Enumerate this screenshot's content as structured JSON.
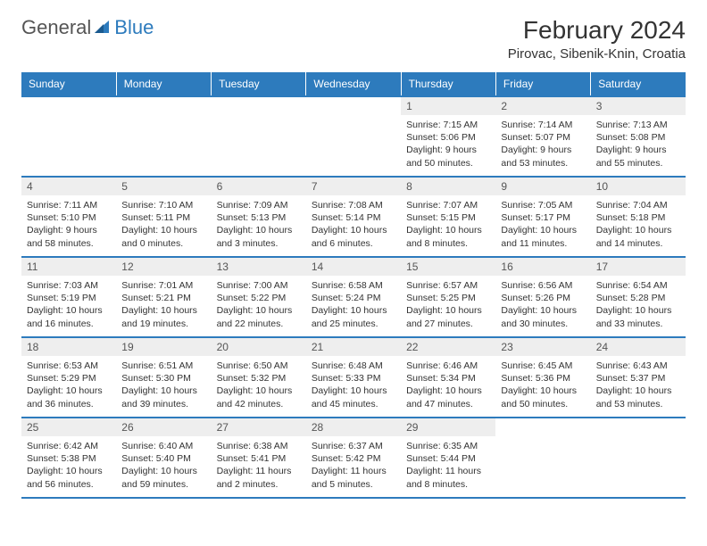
{
  "logo": {
    "general": "General",
    "blue": "Blue"
  },
  "title": "February 2024",
  "location": "Pirovac, Sibenik-Knin, Croatia",
  "colors": {
    "header_bg": "#2d7bbd",
    "header_text": "#ffffff",
    "daynum_bg": "#eeeeee",
    "border": "#2d7bbd",
    "text": "#333333"
  },
  "weekdays": [
    "Sunday",
    "Monday",
    "Tuesday",
    "Wednesday",
    "Thursday",
    "Friday",
    "Saturday"
  ],
  "weeks": [
    [
      {
        "empty": true
      },
      {
        "empty": true
      },
      {
        "empty": true
      },
      {
        "empty": true
      },
      {
        "day": "1",
        "sunrise": "Sunrise: 7:15 AM",
        "sunset": "Sunset: 5:06 PM",
        "daylight": "Daylight: 9 hours and 50 minutes."
      },
      {
        "day": "2",
        "sunrise": "Sunrise: 7:14 AM",
        "sunset": "Sunset: 5:07 PM",
        "daylight": "Daylight: 9 hours and 53 minutes."
      },
      {
        "day": "3",
        "sunrise": "Sunrise: 7:13 AM",
        "sunset": "Sunset: 5:08 PM",
        "daylight": "Daylight: 9 hours and 55 minutes."
      }
    ],
    [
      {
        "day": "4",
        "sunrise": "Sunrise: 7:11 AM",
        "sunset": "Sunset: 5:10 PM",
        "daylight": "Daylight: 9 hours and 58 minutes."
      },
      {
        "day": "5",
        "sunrise": "Sunrise: 7:10 AM",
        "sunset": "Sunset: 5:11 PM",
        "daylight": "Daylight: 10 hours and 0 minutes."
      },
      {
        "day": "6",
        "sunrise": "Sunrise: 7:09 AM",
        "sunset": "Sunset: 5:13 PM",
        "daylight": "Daylight: 10 hours and 3 minutes."
      },
      {
        "day": "7",
        "sunrise": "Sunrise: 7:08 AM",
        "sunset": "Sunset: 5:14 PM",
        "daylight": "Daylight: 10 hours and 6 minutes."
      },
      {
        "day": "8",
        "sunrise": "Sunrise: 7:07 AM",
        "sunset": "Sunset: 5:15 PM",
        "daylight": "Daylight: 10 hours and 8 minutes."
      },
      {
        "day": "9",
        "sunrise": "Sunrise: 7:05 AM",
        "sunset": "Sunset: 5:17 PM",
        "daylight": "Daylight: 10 hours and 11 minutes."
      },
      {
        "day": "10",
        "sunrise": "Sunrise: 7:04 AM",
        "sunset": "Sunset: 5:18 PM",
        "daylight": "Daylight: 10 hours and 14 minutes."
      }
    ],
    [
      {
        "day": "11",
        "sunrise": "Sunrise: 7:03 AM",
        "sunset": "Sunset: 5:19 PM",
        "daylight": "Daylight: 10 hours and 16 minutes."
      },
      {
        "day": "12",
        "sunrise": "Sunrise: 7:01 AM",
        "sunset": "Sunset: 5:21 PM",
        "daylight": "Daylight: 10 hours and 19 minutes."
      },
      {
        "day": "13",
        "sunrise": "Sunrise: 7:00 AM",
        "sunset": "Sunset: 5:22 PM",
        "daylight": "Daylight: 10 hours and 22 minutes."
      },
      {
        "day": "14",
        "sunrise": "Sunrise: 6:58 AM",
        "sunset": "Sunset: 5:24 PM",
        "daylight": "Daylight: 10 hours and 25 minutes."
      },
      {
        "day": "15",
        "sunrise": "Sunrise: 6:57 AM",
        "sunset": "Sunset: 5:25 PM",
        "daylight": "Daylight: 10 hours and 27 minutes."
      },
      {
        "day": "16",
        "sunrise": "Sunrise: 6:56 AM",
        "sunset": "Sunset: 5:26 PM",
        "daylight": "Daylight: 10 hours and 30 minutes."
      },
      {
        "day": "17",
        "sunrise": "Sunrise: 6:54 AM",
        "sunset": "Sunset: 5:28 PM",
        "daylight": "Daylight: 10 hours and 33 minutes."
      }
    ],
    [
      {
        "day": "18",
        "sunrise": "Sunrise: 6:53 AM",
        "sunset": "Sunset: 5:29 PM",
        "daylight": "Daylight: 10 hours and 36 minutes."
      },
      {
        "day": "19",
        "sunrise": "Sunrise: 6:51 AM",
        "sunset": "Sunset: 5:30 PM",
        "daylight": "Daylight: 10 hours and 39 minutes."
      },
      {
        "day": "20",
        "sunrise": "Sunrise: 6:50 AM",
        "sunset": "Sunset: 5:32 PM",
        "daylight": "Daylight: 10 hours and 42 minutes."
      },
      {
        "day": "21",
        "sunrise": "Sunrise: 6:48 AM",
        "sunset": "Sunset: 5:33 PM",
        "daylight": "Daylight: 10 hours and 45 minutes."
      },
      {
        "day": "22",
        "sunrise": "Sunrise: 6:46 AM",
        "sunset": "Sunset: 5:34 PM",
        "daylight": "Daylight: 10 hours and 47 minutes."
      },
      {
        "day": "23",
        "sunrise": "Sunrise: 6:45 AM",
        "sunset": "Sunset: 5:36 PM",
        "daylight": "Daylight: 10 hours and 50 minutes."
      },
      {
        "day": "24",
        "sunrise": "Sunrise: 6:43 AM",
        "sunset": "Sunset: 5:37 PM",
        "daylight": "Daylight: 10 hours and 53 minutes."
      }
    ],
    [
      {
        "day": "25",
        "sunrise": "Sunrise: 6:42 AM",
        "sunset": "Sunset: 5:38 PM",
        "daylight": "Daylight: 10 hours and 56 minutes."
      },
      {
        "day": "26",
        "sunrise": "Sunrise: 6:40 AM",
        "sunset": "Sunset: 5:40 PM",
        "daylight": "Daylight: 10 hours and 59 minutes."
      },
      {
        "day": "27",
        "sunrise": "Sunrise: 6:38 AM",
        "sunset": "Sunset: 5:41 PM",
        "daylight": "Daylight: 11 hours and 2 minutes."
      },
      {
        "day": "28",
        "sunrise": "Sunrise: 6:37 AM",
        "sunset": "Sunset: 5:42 PM",
        "daylight": "Daylight: 11 hours and 5 minutes."
      },
      {
        "day": "29",
        "sunrise": "Sunrise: 6:35 AM",
        "sunset": "Sunset: 5:44 PM",
        "daylight": "Daylight: 11 hours and 8 minutes."
      },
      {
        "empty": true
      },
      {
        "empty": true
      }
    ]
  ]
}
